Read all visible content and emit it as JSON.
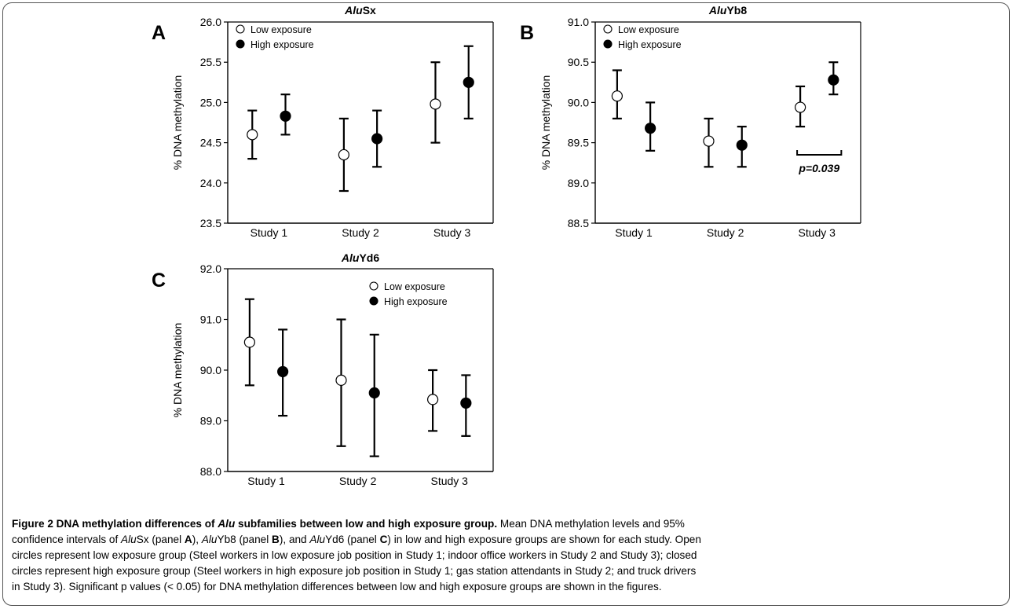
{
  "figure": {
    "caption_lines": [
      [
        "<b class=\"cap-title\">Figure 2 DNA methylation differences of <i>Alu</i> subfamilies between low and high exposure group.</b> Mean DNA methylation levels and 95%"
      ],
      [
        "confidence intervals of <i>Alu</i>Sx (panel <b>A</b>), <i>Alu</i>Yb8 (panel <b>B</b>), and <i>Alu</i>Yd6 (panel <b>C</b>) in low and high exposure groups are shown for each study. Open"
      ],
      [
        "circles represent low exposure group (Steel workers in low exposure job position in Study 1; indoor office workers in Study 2 and Study 3); closed"
      ],
      [
        "circles represent high exposure group (Steel workers in high exposure job position in Study 1; gas station attendants in Study 2; and truck drivers"
      ],
      [
        "in Study 3). Significant p values (&lt; 0.05) for DNA methylation differences between low and high exposure groups are shown in the figures."
      ]
    ]
  },
  "chart_data": [
    {
      "type": "scatter",
      "panel_letter": "A",
      "title_italic": "Alu",
      "title_rest": "Sx",
      "ylabel": "% DNA methylation",
      "ylim": [
        23.5,
        26.0
      ],
      "yticks": [
        "23.5",
        "24.0",
        "24.5",
        "25.0",
        "25.5",
        "26.0"
      ],
      "categories": [
        "Study 1",
        "Study 2",
        "Study 3"
      ],
      "legend": {
        "position": "top-left",
        "entries": [
          "Low exposure",
          "High exposure"
        ]
      },
      "series": [
        {
          "name": "Low exposure",
          "marker": "open-circle",
          "means": [
            24.6,
            24.35,
            24.98
          ],
          "lower": [
            24.3,
            23.9,
            24.5
          ],
          "upper": [
            24.9,
            24.8,
            25.5
          ]
        },
        {
          "name": "High exposure",
          "marker": "closed-circle",
          "means": [
            24.83,
            24.55,
            25.25
          ],
          "lower": [
            24.6,
            24.2,
            24.8
          ],
          "upper": [
            25.1,
            24.9,
            25.7
          ]
        }
      ],
      "annotations": []
    },
    {
      "type": "scatter",
      "panel_letter": "B",
      "title_italic": "Alu",
      "title_rest": "Yb8",
      "ylabel": "% DNA methylation",
      "ylim": [
        88.5,
        91.0
      ],
      "yticks": [
        "88.5",
        "89.0",
        "89.5",
        "90.0",
        "90.5",
        "91.0"
      ],
      "categories": [
        "Study 1",
        "Study 2",
        "Study 3"
      ],
      "legend": {
        "position": "top-left",
        "entries": [
          "Low exposure",
          "High exposure"
        ]
      },
      "series": [
        {
          "name": "Low exposure",
          "marker": "open-circle",
          "means": [
            90.08,
            89.52,
            89.94
          ],
          "lower": [
            89.8,
            89.2,
            89.7
          ],
          "upper": [
            90.4,
            89.8,
            90.2
          ]
        },
        {
          "name": "High exposure",
          "marker": "closed-circle",
          "means": [
            89.68,
            89.47,
            90.28
          ],
          "lower": [
            89.4,
            89.2,
            90.1
          ],
          "upper": [
            90.0,
            89.7,
            90.5
          ]
        }
      ],
      "annotations": [
        {
          "category": "Study 3",
          "text": "p=0.039",
          "bracket_y": 89.35
        }
      ]
    },
    {
      "type": "scatter",
      "panel_letter": "C",
      "title_italic": "Alu",
      "title_rest": "Yd6",
      "ylabel": "% DNA methylation",
      "ylim": [
        88.0,
        92.0
      ],
      "yticks": [
        "88.0",
        "89.0",
        "90.0",
        "91.0",
        "92.0"
      ],
      "categories": [
        "Study 1",
        "Study 2",
        "Study 3"
      ],
      "legend": {
        "position": "top-right",
        "entries": [
          "Low exposure",
          "High exposure"
        ]
      },
      "series": [
        {
          "name": "Low exposure",
          "marker": "open-circle",
          "means": [
            90.55,
            89.8,
            89.42
          ],
          "lower": [
            89.7,
            88.5,
            88.8
          ],
          "upper": [
            91.4,
            91.0,
            90.0
          ]
        },
        {
          "name": "High exposure",
          "marker": "closed-circle",
          "means": [
            89.97,
            89.55,
            89.35
          ],
          "lower": [
            89.1,
            88.3,
            88.7
          ],
          "upper": [
            90.8,
            90.7,
            89.9
          ]
        }
      ],
      "annotations": []
    }
  ]
}
